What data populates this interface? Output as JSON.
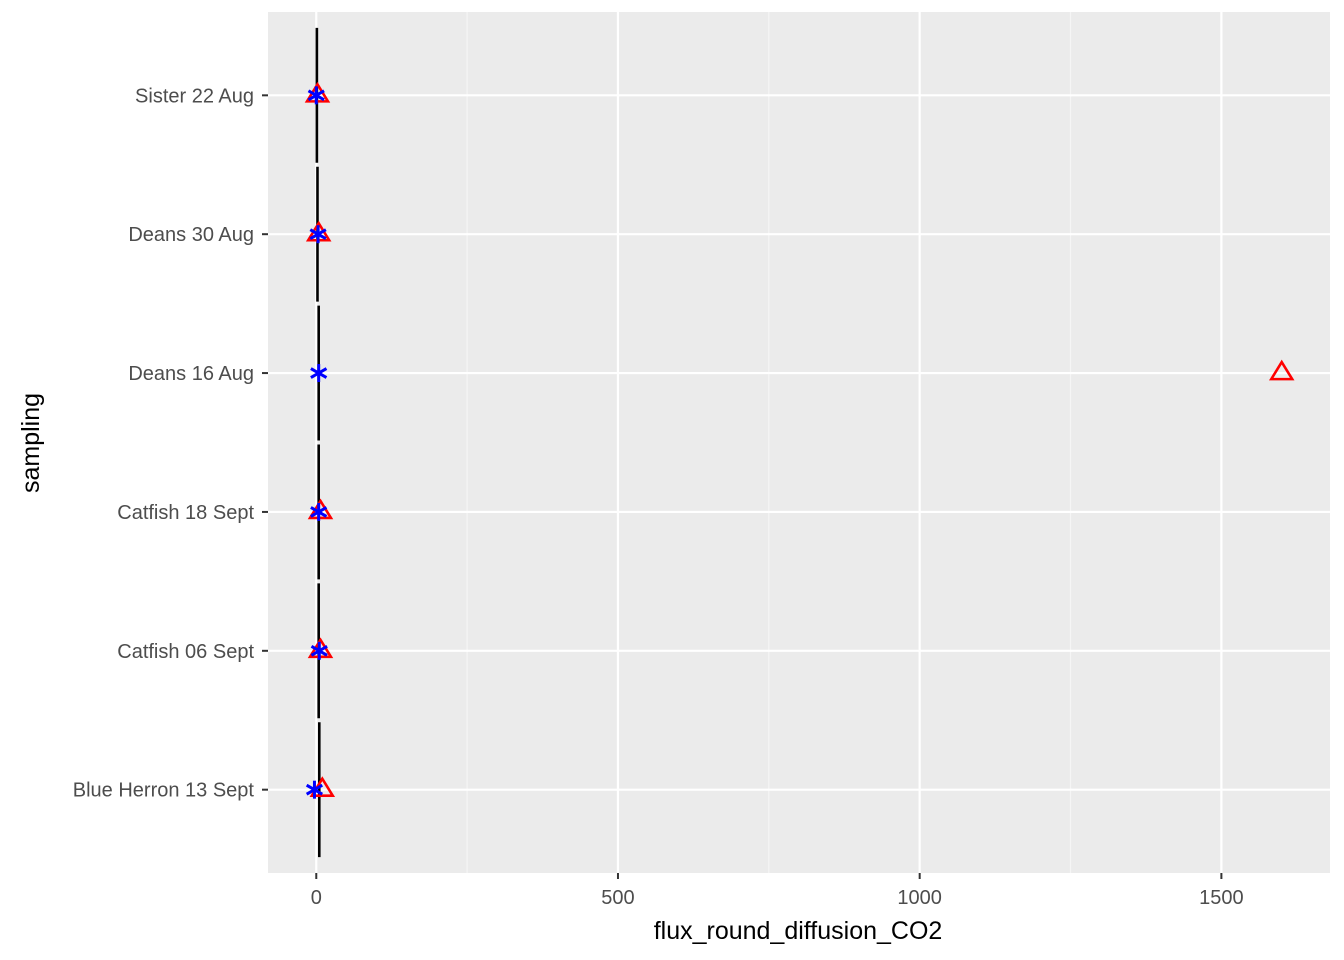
{
  "chart_data": {
    "type": "scatter",
    "title": "",
    "xlabel": "flux_round_diffusion_CO2",
    "ylabel": "sampling",
    "xlim": [
      -80,
      1680
    ],
    "x_ticks": [
      0,
      500,
      1000,
      1500
    ],
    "x_tick_labels": [
      "0",
      "500",
      "1000",
      "1500"
    ],
    "categories": [
      "Blue Herron 13 Sept",
      "Catfish 06 Sept",
      "Catfish 18 Sept",
      "Deans 16 Aug",
      "Deans 30 Aug",
      "Sister 22 Aug"
    ],
    "grid": true,
    "legend": "none",
    "colors": {
      "panel": "#ebebeb",
      "grid_major": "#ffffff",
      "grid_minor": "#f5f5f5",
      "series_lines": "#000000",
      "series_triangles": "#ff0000",
      "series_stars": "#0000ff"
    },
    "series": [
      {
        "marker": "vertical-line",
        "points": [
          {
            "category": "Blue Herron 13 Sept",
            "x": 5
          },
          {
            "category": "Catfish 06 Sept",
            "x": 4
          },
          {
            "category": "Catfish 18 Sept",
            "x": 4
          },
          {
            "category": "Deans 16 Aug",
            "x": 4
          },
          {
            "category": "Deans 30 Aug",
            "x": 2
          },
          {
            "category": "Sister 22 Aug",
            "x": 1
          }
        ]
      },
      {
        "marker": "open-triangle",
        "points": [
          {
            "category": "Blue Herron 13 Sept",
            "x": 10
          },
          {
            "category": "Catfish 06 Sept",
            "x": 7
          },
          {
            "category": "Catfish 18 Sept",
            "x": 7
          },
          {
            "category": "Deans 16 Aug",
            "x": 1600
          },
          {
            "category": "Deans 30 Aug",
            "x": 4
          },
          {
            "category": "Sister 22 Aug",
            "x": 2
          }
        ]
      },
      {
        "marker": "star",
        "points": [
          {
            "category": "Blue Herron 13 Sept",
            "x": -3
          },
          {
            "category": "Catfish 06 Sept",
            "x": 5
          },
          {
            "category": "Catfish 18 Sept",
            "x": 4
          },
          {
            "category": "Deans 16 Aug",
            "x": 4
          },
          {
            "category": "Deans 30 Aug",
            "x": 3
          },
          {
            "category": "Sister 22 Aug",
            "x": 0
          }
        ]
      }
    ]
  }
}
